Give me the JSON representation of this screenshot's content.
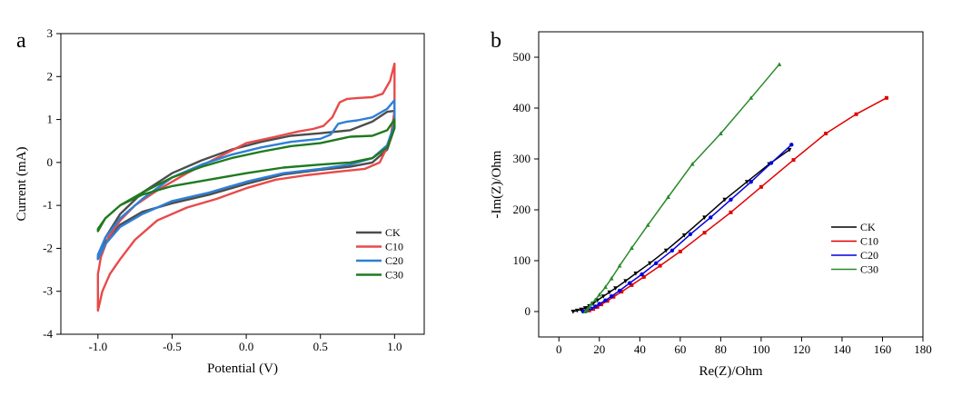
{
  "chart_data": [
    {
      "type": "line",
      "panel_label": "a",
      "xlabel": "Potential (V)",
      "ylabel": "Current (mA)",
      "xlim": [
        -1.25,
        1.2
      ],
      "ylim": [
        -4,
        3
      ],
      "xticks": [
        "-1.0",
        "-0.5",
        "0.0",
        "0.5",
        "1.0"
      ],
      "yticks": [
        "3",
        "2",
        "1",
        "0",
        "-1",
        "-2",
        "-3",
        "-4"
      ],
      "legend": "bottom-right",
      "series": [
        {
          "name": "CK",
          "color": "#4d4d4d",
          "x": [
            -1.0,
            -0.95,
            -0.85,
            -0.7,
            -0.5,
            -0.25,
            0.0,
            0.25,
            0.5,
            0.7,
            0.85,
            0.95,
            1.0,
            1.0,
            0.95,
            0.85,
            0.7,
            0.5,
            0.3,
            0.1,
            -0.1,
            -0.3,
            -0.5,
            -0.7,
            -0.85,
            -0.95,
            -1.0
          ],
          "y": [
            -2.25,
            -1.85,
            -1.45,
            -1.15,
            -0.95,
            -0.75,
            -0.5,
            -0.28,
            -0.17,
            -0.1,
            0.0,
            0.3,
            0.8,
            1.2,
            1.18,
            0.95,
            0.75,
            0.68,
            0.62,
            0.48,
            0.3,
            0.05,
            -0.25,
            -0.7,
            -1.2,
            -1.75,
            -2.2
          ]
        },
        {
          "name": "C10",
          "color": "#e84a4a",
          "x": [
            -1.0,
            -0.97,
            -0.92,
            -0.85,
            -0.75,
            -0.6,
            -0.4,
            -0.2,
            0.0,
            0.2,
            0.4,
            0.6,
            0.8,
            0.9,
            0.97,
            1.0,
            1.0,
            0.97,
            0.92,
            0.85,
            0.75,
            0.68,
            0.63,
            0.58,
            0.52,
            0.45,
            0.35,
            0.2,
            0.0,
            -0.2,
            -0.4,
            -0.6,
            -0.75,
            -0.85,
            -0.93,
            -0.98,
            -1.0
          ],
          "y": [
            -3.45,
            -3.0,
            -2.6,
            -2.25,
            -1.8,
            -1.35,
            -1.05,
            -0.85,
            -0.6,
            -0.4,
            -0.3,
            -0.22,
            -0.15,
            0.0,
            0.5,
            1.2,
            2.3,
            1.9,
            1.6,
            1.52,
            1.5,
            1.48,
            1.4,
            1.05,
            0.85,
            0.78,
            0.72,
            0.6,
            0.45,
            0.1,
            -0.25,
            -0.65,
            -1.0,
            -1.35,
            -1.75,
            -2.2,
            -2.6
          ]
        },
        {
          "name": "C20",
          "color": "#2f7fd6",
          "x": [
            -1.0,
            -0.95,
            -0.85,
            -0.7,
            -0.5,
            -0.25,
            0.0,
            0.25,
            0.5,
            0.7,
            0.85,
            0.95,
            1.0,
            1.0,
            0.95,
            0.85,
            0.75,
            0.68,
            0.62,
            0.57,
            0.5,
            0.3,
            0.1,
            -0.1,
            -0.3,
            -0.5,
            -0.7,
            -0.85,
            -0.95,
            -1.0
          ],
          "y": [
            -2.25,
            -1.9,
            -1.5,
            -1.2,
            -0.9,
            -0.7,
            -0.45,
            -0.25,
            -0.15,
            -0.05,
            0.1,
            0.4,
            0.9,
            1.45,
            1.25,
            1.05,
            0.98,
            0.95,
            0.9,
            0.65,
            0.55,
            0.48,
            0.35,
            0.18,
            -0.05,
            -0.35,
            -0.85,
            -1.3,
            -1.75,
            -2.15
          ]
        },
        {
          "name": "C30",
          "color": "#1f7a1f",
          "x": [
            -1.0,
            -0.95,
            -0.85,
            -0.7,
            -0.5,
            -0.25,
            0.0,
            0.25,
            0.5,
            0.7,
            0.85,
            0.95,
            1.0,
            1.0,
            0.95,
            0.85,
            0.7,
            0.5,
            0.3,
            0.1,
            -0.1,
            -0.3,
            -0.5,
            -0.7,
            -0.85,
            -0.95,
            -1.0
          ],
          "y": [
            -1.6,
            -1.3,
            -1.0,
            -0.75,
            -0.55,
            -0.4,
            -0.25,
            -0.12,
            -0.05,
            0.0,
            0.1,
            0.35,
            0.8,
            1.0,
            0.75,
            0.62,
            0.6,
            0.45,
            0.38,
            0.25,
            0.1,
            -0.1,
            -0.35,
            -0.7,
            -1.0,
            -1.3,
            -1.55
          ]
        }
      ]
    },
    {
      "type": "line",
      "panel_label": "b",
      "xlabel": "Re(Z)/Ohm",
      "ylabel": "-Im(Z)/Ohm",
      "xlim": [
        -10,
        180
      ],
      "ylim": [
        -50,
        550
      ],
      "xticks": [
        "0",
        "20",
        "40",
        "60",
        "80",
        "100",
        "120",
        "140",
        "160",
        "180"
      ],
      "yticks": [
        "500",
        "400",
        "300",
        "200",
        "100",
        "0"
      ],
      "legend": "bottom-right",
      "series": [
        {
          "name": "CK",
          "color": "#000000",
          "marker": "triangle-down",
          "x": [
            7,
            9,
            11,
            13,
            15,
            17,
            19,
            22,
            25,
            28,
            33,
            38,
            45,
            53,
            62,
            72,
            82,
            93,
            104,
            114
          ],
          "y": [
            0,
            2,
            4,
            7,
            11,
            16,
            22,
            30,
            38,
            46,
            60,
            75,
            95,
            120,
            150,
            185,
            220,
            255,
            290,
            318
          ]
        },
        {
          "name": "C10",
          "color": "#e00000",
          "marker": "square",
          "x": [
            13,
            15,
            17,
            19,
            21,
            24,
            27,
            31,
            36,
            42,
            50,
            60,
            72,
            85,
            100,
            116,
            132,
            147,
            162
          ],
          "y": [
            0,
            2,
            5,
            9,
            14,
            21,
            29,
            39,
            52,
            68,
            90,
            118,
            155,
            195,
            245,
            298,
            350,
            388,
            420
          ]
        },
        {
          "name": "C20",
          "color": "#0000e0",
          "marker": "circle",
          "x": [
            12,
            14,
            16,
            18,
            20,
            23,
            26,
            30,
            35,
            41,
            48,
            56,
            65,
            75,
            85,
            95,
            105,
            115
          ],
          "y": [
            0,
            3,
            6,
            10,
            15,
            22,
            30,
            41,
            56,
            73,
            95,
            120,
            152,
            185,
            220,
            255,
            292,
            328
          ]
        },
        {
          "name": "C30",
          "color": "#2a8a2a",
          "marker": "triangle-up",
          "x": [
            13,
            14,
            15,
            16,
            18,
            20,
            23,
            26,
            30,
            36,
            44,
            54,
            66,
            80,
            95,
            109
          ],
          "y": [
            0,
            4,
            9,
            15,
            23,
            33,
            48,
            65,
            90,
            125,
            170,
            225,
            290,
            350,
            420,
            486
          ]
        }
      ]
    }
  ]
}
